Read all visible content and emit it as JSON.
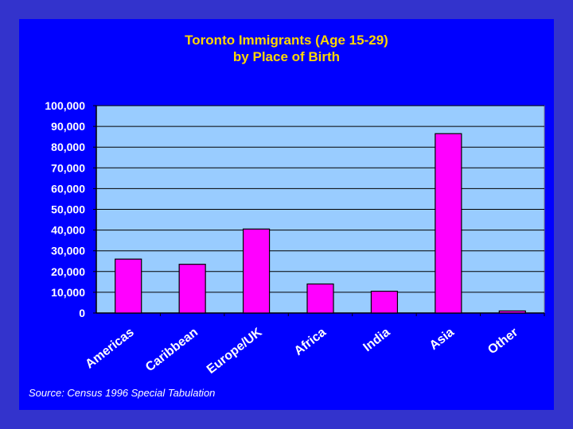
{
  "colors": {
    "background": "#3333cc",
    "slide": "#0000ff",
    "plot_area": "#99ccff",
    "bar": "#ff00ff",
    "title": "#ffd700",
    "text": "#ffffff"
  },
  "source": "Source: Census 1996 Special Tabulation",
  "chart_data": {
    "type": "bar",
    "title": [
      "Toronto Immigrants (Age 15-29)",
      "by Place of Birth"
    ],
    "categories": [
      "Americas",
      "Caribbean",
      "Europe/UK",
      "Africa",
      "India",
      "Asia",
      "Other"
    ],
    "values": [
      26000,
      23500,
      40500,
      14000,
      10500,
      86500,
      1000
    ],
    "ylim": [
      0,
      100000
    ],
    "yticks": [
      0,
      10000,
      20000,
      30000,
      40000,
      50000,
      60000,
      70000,
      80000,
      90000,
      100000
    ],
    "ytick_labels": [
      "0",
      "10,000",
      "20,000",
      "30,000",
      "40,000",
      "50,000",
      "60,000",
      "70,000",
      "80,000",
      "90,000",
      "100,000"
    ],
    "grid": true,
    "legend": "none"
  }
}
